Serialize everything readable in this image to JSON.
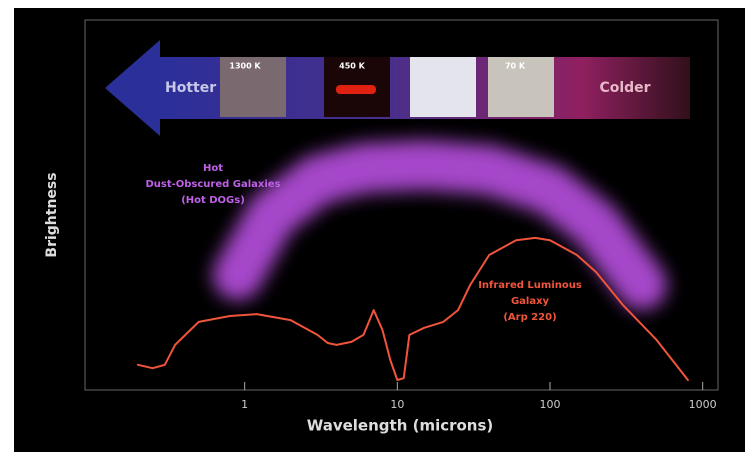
{
  "chart_data": {
    "type": "line",
    "log_x": true,
    "xlabel": "Wavelength (microns)",
    "ylabel": "Brightness",
    "xlim": [
      0.09,
      1260
    ],
    "xticks": [
      1,
      10,
      100,
      1000
    ],
    "ylim": [
      0,
      10
    ],
    "series": [
      {
        "style": "band",
        "color": "#b850e0",
        "x": [
          0.9,
          1.5,
          3,
          6,
          15,
          40,
          100,
          200,
          400
        ],
        "values": [
          3.1,
          4.73,
          5.68,
          6.0,
          6.08,
          5.95,
          5.41,
          4.46,
          2.84
        ]
      },
      {
        "style": "line",
        "color": "#f0553c",
        "x": [
          0.2,
          0.25,
          0.3,
          0.35,
          0.5,
          0.8,
          1.2,
          2,
          3,
          3.5,
          4,
          5,
          6,
          7,
          8,
          9,
          10,
          11,
          12,
          15,
          20,
          25,
          30,
          40,
          60,
          80,
          100,
          150,
          200,
          300,
          500,
          800
        ],
        "values": [
          0.68,
          0.59,
          0.68,
          1.22,
          1.84,
          2.0,
          2.05,
          1.89,
          1.49,
          1.27,
          1.22,
          1.3,
          1.49,
          2.16,
          1.62,
          0.81,
          0.27,
          0.32,
          1.49,
          1.68,
          1.84,
          2.16,
          2.84,
          3.65,
          4.05,
          4.11,
          4.05,
          3.65,
          3.19,
          2.3,
          1.35,
          0.27
        ]
      }
    ],
    "annotations": [
      {
        "lines": [
          "Hot",
          "Dust-Obscured Galaxies",
          "(Hot DOGs)"
        ],
        "color": "#c060e8"
      },
      {
        "lines": [
          "Infrared Luminous",
          "Galaxy",
          "(Arp 220)"
        ],
        "color": "#f0553c"
      }
    ]
  },
  "banner": {
    "hot": "Hotter",
    "cold": "Colder",
    "temps": [
      "1300 K",
      "450 K",
      "70 K"
    ]
  }
}
